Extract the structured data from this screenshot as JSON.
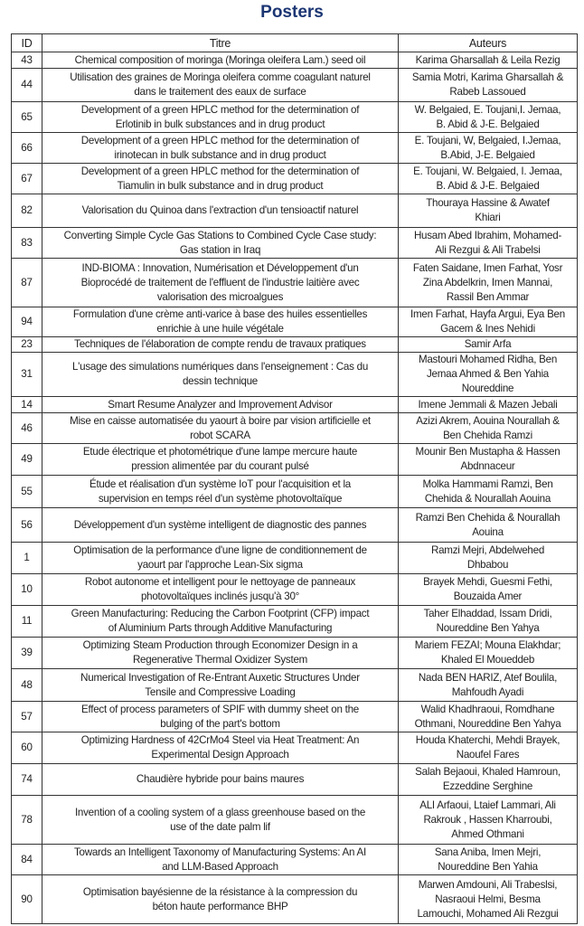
{
  "title": "Posters",
  "headers": {
    "id": "ID",
    "titre": "Titre",
    "auteurs": "Auteurs"
  },
  "rows": [
    {
      "id": "43",
      "titre": "Chemical composition of moringa (Moringa oleifera Lam.) seed oil",
      "auteurs": "Karima Gharsallah & Leila Rezig"
    },
    {
      "id": "44",
      "titre": "Utilisation des graines de Moringa oleifera comme coagulant naturel\ndans le traitement des eaux de surface",
      "auteurs": "Samia Motri, Karima Gharsallah &\nRabeb Lassoued"
    },
    {
      "id": "65",
      "titre": "Development of a green HPLC method for the determination of\nErlotinib in bulk substances and in drug product",
      "auteurs": "W. Belgaied, E. Toujani,I. Jemaa,\nB. Abid & J-E. Belgaied"
    },
    {
      "id": "66",
      "titre": "Development of a green HPLC method for the determination of\nirinotecan in bulk substance and in drug product",
      "auteurs": "E. Toujani, W, Belgaied, I.Jemaa,\nB.Abid, J-E. Belgaied"
    },
    {
      "id": "67",
      "titre": "Development of a green HPLC method for the determination of\nTiamulin in bulk substance and in drug product",
      "auteurs": "E. Toujani, W. Belgaied, I. Jemaa,\nB. Abid & J-E. Belgaied"
    },
    {
      "id": "82",
      "titre": "Valorisation du Quinoa dans l'extraction d'un tensioactif naturel",
      "auteurs": "Thouraya Hassine & Awatef\nKhiari"
    },
    {
      "id": "83",
      "titre": "Converting Simple Cycle Gas Stations to Combined Cycle Case study:\nGas station in Iraq",
      "auteurs": "Husam Abed Ibrahim, Mohamed-\nAli Rezgui & Ali Trabelsi"
    },
    {
      "id": "87",
      "titre": "IND-BIOMA : Innovation, Numérisation et Développement d'un\nBioprocédé de traitement de l'effluent de l'industrie laitière avec\nvalorisation des microalgues",
      "auteurs": "Faten Saidane, Imen Farhat, Yosr\nZina Abdelkrin, Imen Mannai,\nRassil Ben Ammar"
    },
    {
      "id": "94",
      "titre": "Formulation d'une crème anti-varice à base des huiles essentielles\nenrichie à une huile végétale",
      "auteurs": "Imen Farhat, Hayfa Argui, Eya Ben\nGacem & Ines Nehidi"
    },
    {
      "id": "23",
      "titre": "Techniques de l'élaboration de compte rendu de travaux pratiques",
      "auteurs": "Samir Arfa"
    },
    {
      "id": "31",
      "titre": "L'usage des simulations numériques dans l'enseignement : Cas du\ndessin technique",
      "auteurs": "Mastouri Mohamed Ridha, Ben\nJemaa Ahmed & Ben Yahia\nNoureddine"
    },
    {
      "id": "14",
      "titre": "Smart Resume Analyzer and Improvement Advisor",
      "auteurs": "Imene Jemmali & Mazen Jebali"
    },
    {
      "id": "46",
      "titre": "Mise en caisse automatisée du yaourt à boire par vision artificielle et\nrobot SCARA",
      "auteurs": "Azizi Akrem, Aouina Nourallah &\nBen Chehida Ramzi"
    },
    {
      "id": "49",
      "titre": "Etude électrique et photométrique d'une lampe mercure haute\npression alimentée par du courant pulsé",
      "auteurs": "Mounir Ben Mustapha & Hassen\nAbdnnaceur"
    },
    {
      "id": "55",
      "titre": "Étude et réalisation d'un système IoT pour l'acquisition et la\nsupervision en temps réel d'un système photovoltaïque",
      "auteurs": "Molka Hammami Ramzi, Ben\nChehida & Nourallah Aouina"
    },
    {
      "id": "56",
      "titre": "Développement d'un système intelligent de diagnostic des pannes",
      "auteurs": "Ramzi Ben Chehida & Nourallah\nAouina"
    },
    {
      "id": "1",
      "titre": "Optimisation de la performance d'une ligne de conditionnement de\nyaourt par l'approche Lean-Six sigma",
      "auteurs": "Ramzi Mejri, Abdelwehed\nDhbabou"
    },
    {
      "id": "10",
      "titre": "Robot autonome et intelligent pour le nettoyage de panneaux\nphotovoltaïques inclinés jusqu'à 30°",
      "auteurs": "Brayek Mehdi, Guesmi Fethi,\nBouzaida Amer"
    },
    {
      "id": "11",
      "titre": "Green Manufacturing: Reducing the Carbon Footprint (CFP) impact\nof Aluminium Parts through Additive Manufacturing",
      "auteurs": "Taher Elhaddad, Issam Dridi,\nNoureddine Ben Yahya"
    },
    {
      "id": "39",
      "titre": "Optimizing Steam Production through Economizer Design in a\nRegenerative Thermal Oxidizer System",
      "auteurs": "Mariem FEZAI; Mouna Elakhdar;\nKhaled El Moueddeb"
    },
    {
      "id": "48",
      "titre": "Numerical Investigation of Re-Entrant Auxetic Structures Under\nTensile and Compressive Loading",
      "auteurs": "Nada BEN HARIZ, Atef Boulila,\nMahfoudh Ayadi"
    },
    {
      "id": "57",
      "titre": "Effect of process parameters of SPIF with dummy sheet on the\nbulging of the part's bottom",
      "auteurs": "Walid Khadhraoui, Romdhane\nOthmani, Noureddine Ben Yahya"
    },
    {
      "id": "60",
      "titre": "Optimizing Hardness of 42CrMo4 Steel via Heat Treatment: An\nExperimental Design Approach",
      "auteurs": "Houda Khaterchi, Mehdi Brayek,\nNaoufel Fares"
    },
    {
      "id": "74",
      "titre": "Chaudière hybride pour bains maures",
      "auteurs": "Salah Bejaoui, Khaled Hamroun,\nEzzeddine Serghine"
    },
    {
      "id": "78",
      "titre": "Invention of a cooling system of a glass greenhouse based on the\nuse of the date palm lif",
      "auteurs": "ALI Arfaoui, Ltaief Lammari, Ali\nRakrouk , Hassen Kharroubi,\nAhmed Othmani"
    },
    {
      "id": "84",
      "titre": "Towards an Intelligent Taxonomy of Manufacturing Systems: An AI\nand LLM-Based Approach",
      "auteurs": "Sana Aniba, Imen Mejri,\nNoureddine Ben Yahia"
    },
    {
      "id": "90",
      "titre": "Optimisation bayésienne de la résistance à la compression du\nbéton haute performance BHP",
      "auteurs": "Marwen Amdouni, Ali Trabeslsi,\nNasraoui Helmi, Besma\nLamouchi, Mohamed Ali Rezgui"
    }
  ]
}
